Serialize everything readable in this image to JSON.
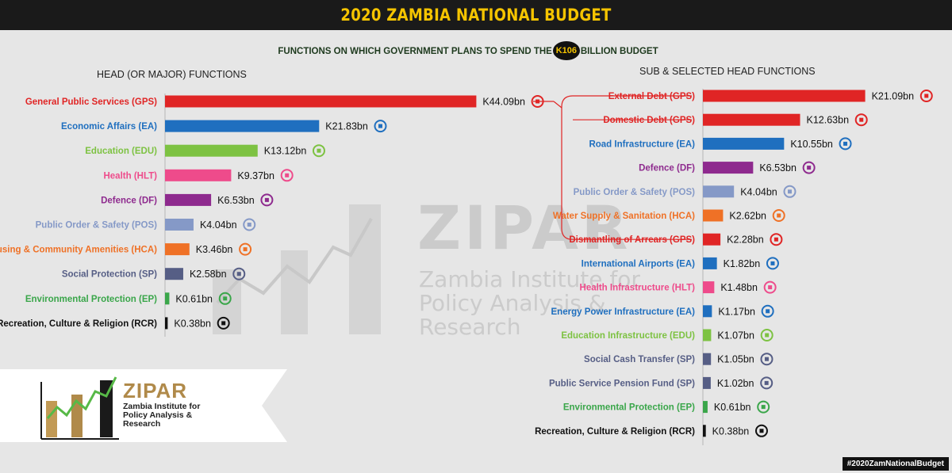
{
  "header": {
    "title": "2020 ZAMBIA NATIONAL BUDGET"
  },
  "subtitle": {
    "before": "FUNCTIONS ON WHICH GOVERNMENT PLANS TO SPEND THE",
    "amount": "K106",
    "after": "BILLION BUDGET"
  },
  "headings": {
    "left": "HEAD (OR MAJOR) FUNCTIONS",
    "right": "SUB & SELECTED HEAD FUNCTIONS"
  },
  "logo": {
    "name": "ZIPAR",
    "line1": "Zambia Institute for",
    "line2": "Policy Analysis &",
    "line3": "Research"
  },
  "watermark": {
    "name": "ZIPAR",
    "line1": "Zambia Institute for",
    "line2": "Policy Analysis &",
    "line3": "Research"
  },
  "hashtag": "#2020ZamNationalBudget",
  "colors": {
    "GPS": "#e02525",
    "EA": "#1f6fbf",
    "EDU": "#7dc242",
    "HLT": "#ee4b8b",
    "DF": "#8e2a8e",
    "POS": "#8599c7",
    "HCA": "#ef7126",
    "SP": "#565e85",
    "EP": "#3aa64a",
    "RCR": "#111111",
    "header_bg": "#1a1a1a",
    "header_text": "#f5c400"
  },
  "chart_data": [
    {
      "type": "bar",
      "title": "HEAD (OR MAJOR) FUNCTIONS",
      "unit": "K billion",
      "categories": [
        "General Public Services (GPS)",
        "Economic Affairs (EA)",
        "Education (EDU)",
        "Health (HLT)",
        "Defence (DF)",
        "Public Order & Safety (POS)",
        "Housing & Community Amenities (HCA)",
        "Social Protection (SP)",
        "Environmental Protection (EP)",
        "Recreation, Culture & Religion (RCR)"
      ],
      "codes": [
        "GPS",
        "EA",
        "EDU",
        "HLT",
        "DF",
        "POS",
        "HCA",
        "SP",
        "EP",
        "RCR"
      ],
      "values": [
        44.09,
        21.83,
        13.12,
        9.37,
        6.53,
        4.04,
        3.46,
        2.58,
        0.61,
        0.38
      ],
      "labels": [
        "K44.09bn",
        "K21.83bn",
        "K13.12bn",
        "K9.37bn",
        "K6.53bn",
        "K4.04bn",
        "K3.46bn",
        "K2.58bn",
        "K0.61bn",
        "K0.38bn"
      ],
      "icons": [
        "money-scale-icon",
        "train-icon",
        "graduation-cap-icon",
        "health-cross-icon",
        "eagle-icon",
        "police-building-icon",
        "houses-icon",
        "hands-care-icon",
        "globe-leaf-icon",
        "culture-icon"
      ]
    },
    {
      "type": "bar",
      "title": "SUB & SELECTED HEAD FUNCTIONS",
      "unit": "K billion",
      "categories": [
        "External Debt (GPS)",
        "Domestic Debt (GPS)",
        "Road Infrastructure (EA)",
        "Defence (DF)",
        "Public Order & Safety (POS)",
        "Water Supply & Sanitation (HCA)",
        "Dismantling of Arrears (GPS)",
        "International Airports (EA)",
        "Health Infrastructure (HLT)",
        "Energy Power Infrastructure (EA)",
        "Education Infrastructure (EDU)",
        "Social Cash Transfer (SP)",
        "Public Service Pension Fund (SP)",
        "Environmental Protection (EP)",
        "Recreation, Culture & Religion (RCR)"
      ],
      "codes": [
        "GPS",
        "GPS",
        "EA",
        "DF",
        "POS",
        "HCA",
        "GPS",
        "EA",
        "HLT",
        "EA",
        "EDU",
        "SP",
        "SP",
        "EP",
        "RCR"
      ],
      "values": [
        21.09,
        12.63,
        10.55,
        6.53,
        4.04,
        2.62,
        2.28,
        1.82,
        1.48,
        1.17,
        1.07,
        1.05,
        1.02,
        0.61,
        0.38
      ],
      "labels": [
        "K21.09bn",
        "K12.63bn",
        "K10.55bn",
        "K6.53bn",
        "K4.04bn",
        "K2.62bn",
        "K2.28bn",
        "K1.82bn",
        "K1.48bn",
        "K1.17bn",
        "K1.07bn",
        "K1.05bn",
        "K1.02bn",
        "K0.61bn",
        "K0.38bn"
      ],
      "icons": [
        "money-bomb-icon",
        "debt-bomb-icon",
        "road-icon",
        "eagle-icon",
        "police-building-icon",
        "water-building-icon",
        "arrears-icon",
        "airport-icon",
        "health-cross-icon",
        "power-pylon-icon",
        "school-building-icon",
        "cash-cycle-icon",
        "pensioners-icon",
        "globe-leaf-icon",
        "culture-icon"
      ]
    }
  ]
}
